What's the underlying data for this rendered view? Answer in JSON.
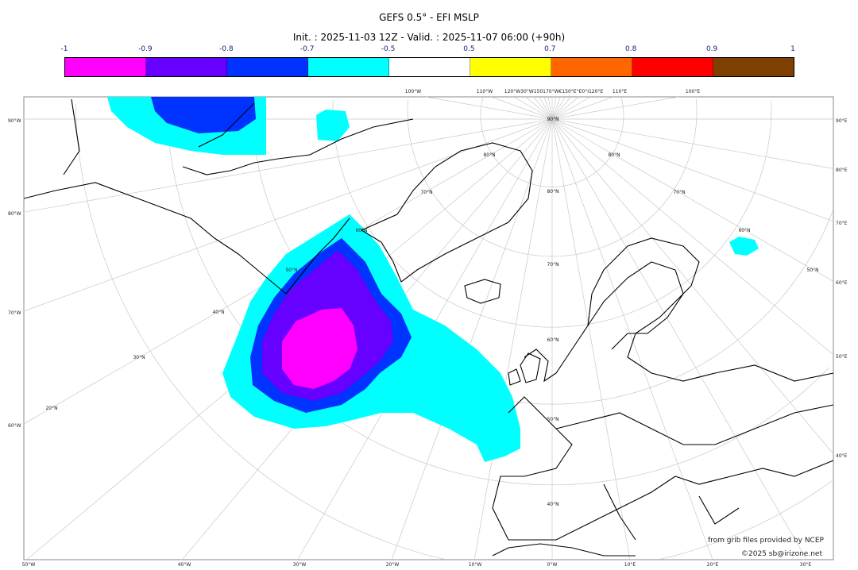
{
  "title": "GEFS 0.5° - EFI MSLP",
  "subtitle": "Init. : 2025-11-03 12Z - Valid. : 2025-11-07 06:00 (+90h)",
  "colorbar": {
    "ticks": [
      "-1",
      "-0.9",
      "-0.8",
      "-0.7",
      "-0.5",
      "0.5",
      "0.7",
      "0.8",
      "0.9",
      "1"
    ],
    "colors": [
      "#ff00ff",
      "#6600ff",
      "#0033ff",
      "#00ffff",
      "#ffffff",
      "#ffff00",
      "#ff6600",
      "#ff0000",
      "#7f3f00"
    ]
  },
  "map": {
    "left_labels": [
      "90°W",
      "80°W",
      "70°W",
      "60°W"
    ],
    "right_labels": [
      "90°E",
      "80°E",
      "70°E",
      "60°E",
      "50°E",
      "40°E"
    ],
    "bottom_labels": [
      "50°W",
      "40°W",
      "30°W",
      "20°W",
      "10°W",
      "0°W",
      "10°E",
      "20°E",
      "30°E"
    ],
    "top_labels": [
      "100°W",
      "110°W",
      "120°W30°W150170°W€150°E°E0°I120°E",
      "110°E",
      "100°E"
    ],
    "lat_labels_center": [
      "90°N",
      "80°N",
      "70°N",
      "60°N",
      "50°N",
      "40°N"
    ],
    "lat_labels_left": [
      "80°N",
      "70°N",
      "60°N",
      "50°N",
      "40°N",
      "30°N",
      "20°N"
    ],
    "lat_labels_right": [
      "80°N",
      "70°N",
      "60°N",
      "50°N"
    ]
  },
  "credits": {
    "source": "from grib files provided by NCEP",
    "copyright": "©2025 sb@irizone.net"
  }
}
